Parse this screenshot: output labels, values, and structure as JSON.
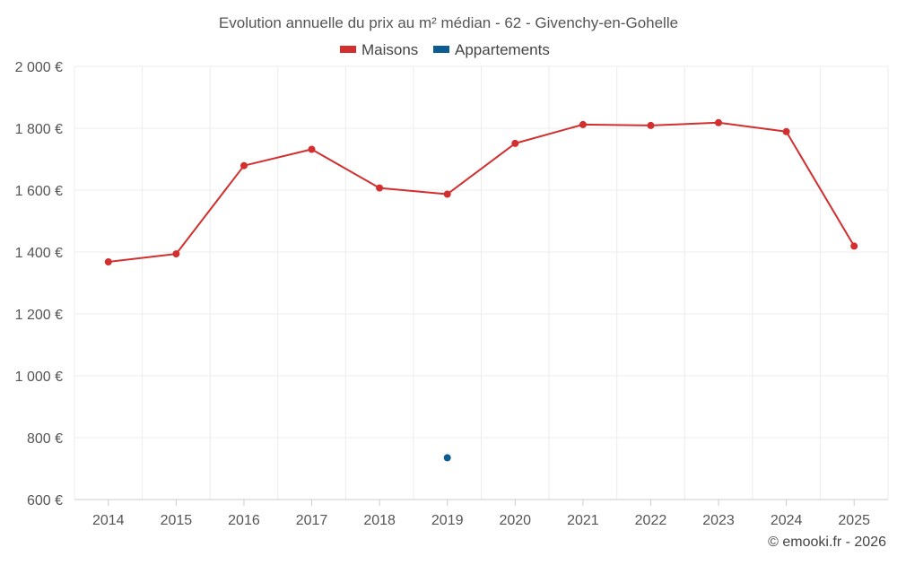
{
  "chart_data": {
    "type": "line",
    "title": "Evolution annuelle du prix au m² médian - 62 - Givenchy-en-Gohelle",
    "xlabel": "",
    "ylabel": "",
    "categories": [
      "2014",
      "2015",
      "2016",
      "2017",
      "2018",
      "2019",
      "2020",
      "2021",
      "2022",
      "2023",
      "2024",
      "2025"
    ],
    "ylim": [
      600,
      2000
    ],
    "yticks": [
      600,
      800,
      1000,
      1200,
      1400,
      1600,
      1800,
      2000
    ],
    "ytick_labels": [
      "600 €",
      "800 €",
      "1 000 €",
      "1 200 €",
      "1 400 €",
      "1 600 €",
      "1 800 €",
      "2 000 €"
    ],
    "grid": true,
    "legend_position": "top-center",
    "series": [
      {
        "name": "Maisons",
        "color": "#d32f2f",
        "values": [
          1368,
          1394,
          1679,
          1732,
          1607,
          1587,
          1751,
          1812,
          1809,
          1818,
          1789,
          1419
        ]
      },
      {
        "name": "Appartements",
        "color": "#0d5c91",
        "values": [
          null,
          null,
          null,
          null,
          null,
          735,
          null,
          null,
          null,
          null,
          null,
          null
        ]
      }
    ],
    "credit": "© emooki.fr - 2026"
  }
}
